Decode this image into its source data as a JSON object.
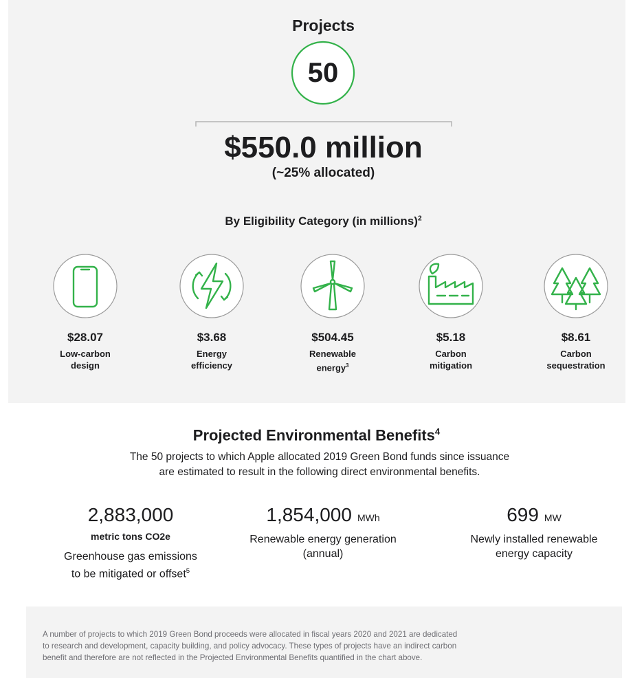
{
  "summary": {
    "projects_label": "Projects",
    "projects_count": "50",
    "amount": "$550.0 million",
    "allocated": "(~25% allocated)"
  },
  "categories": {
    "title": "By Eligibility Category (in millions)",
    "title_note": "2",
    "items": [
      {
        "amount": "$28.07",
        "label_lines": [
          "Low-carbon",
          "design"
        ]
      },
      {
        "amount": "$3.68",
        "label_lines": [
          "Energy",
          "efficiency"
        ]
      },
      {
        "amount": "$504.45",
        "label_lines": [
          "Renewable",
          "energy"
        ],
        "note": "3"
      },
      {
        "amount": "$5.18",
        "label_lines": [
          "Carbon",
          "mitigation"
        ]
      },
      {
        "amount": "$8.61",
        "label_lines": [
          "Carbon",
          "sequestration"
        ]
      }
    ]
  },
  "benefits": {
    "title": "Projected Environmental Benefits",
    "title_note": "4",
    "description_lines": [
      "The 50 projects to which Apple allocated 2019 Green Bond funds since issuance",
      "are estimated to result in the following direct environmental benefits."
    ],
    "stats": [
      {
        "value": "2,883,000",
        "unit_line": "metric tons CO2e",
        "description_lines": [
          "Greenhouse gas emissions",
          "to be mitigated or offset"
        ],
        "note": "5"
      },
      {
        "value": "1,854,000",
        "unit": "MWh",
        "description_lines": [
          "Renewable energy generation",
          "(annual)"
        ]
      },
      {
        "value": "699",
        "unit": "MW",
        "description_lines": [
          "Newly installed renewable",
          "energy capacity"
        ]
      }
    ]
  },
  "footnote": {
    "lines": [
      "A number of projects to which 2019 Green Bond proceeds were allocated in fiscal years 2020 and 2021 are dedicated",
      "to research and development, capacity building, and policy advocacy. These types of projects have an indirect carbon",
      "benefit and therefore are not reflected in the Projected Environmental Benefits quantified in the chart above."
    ]
  }
}
